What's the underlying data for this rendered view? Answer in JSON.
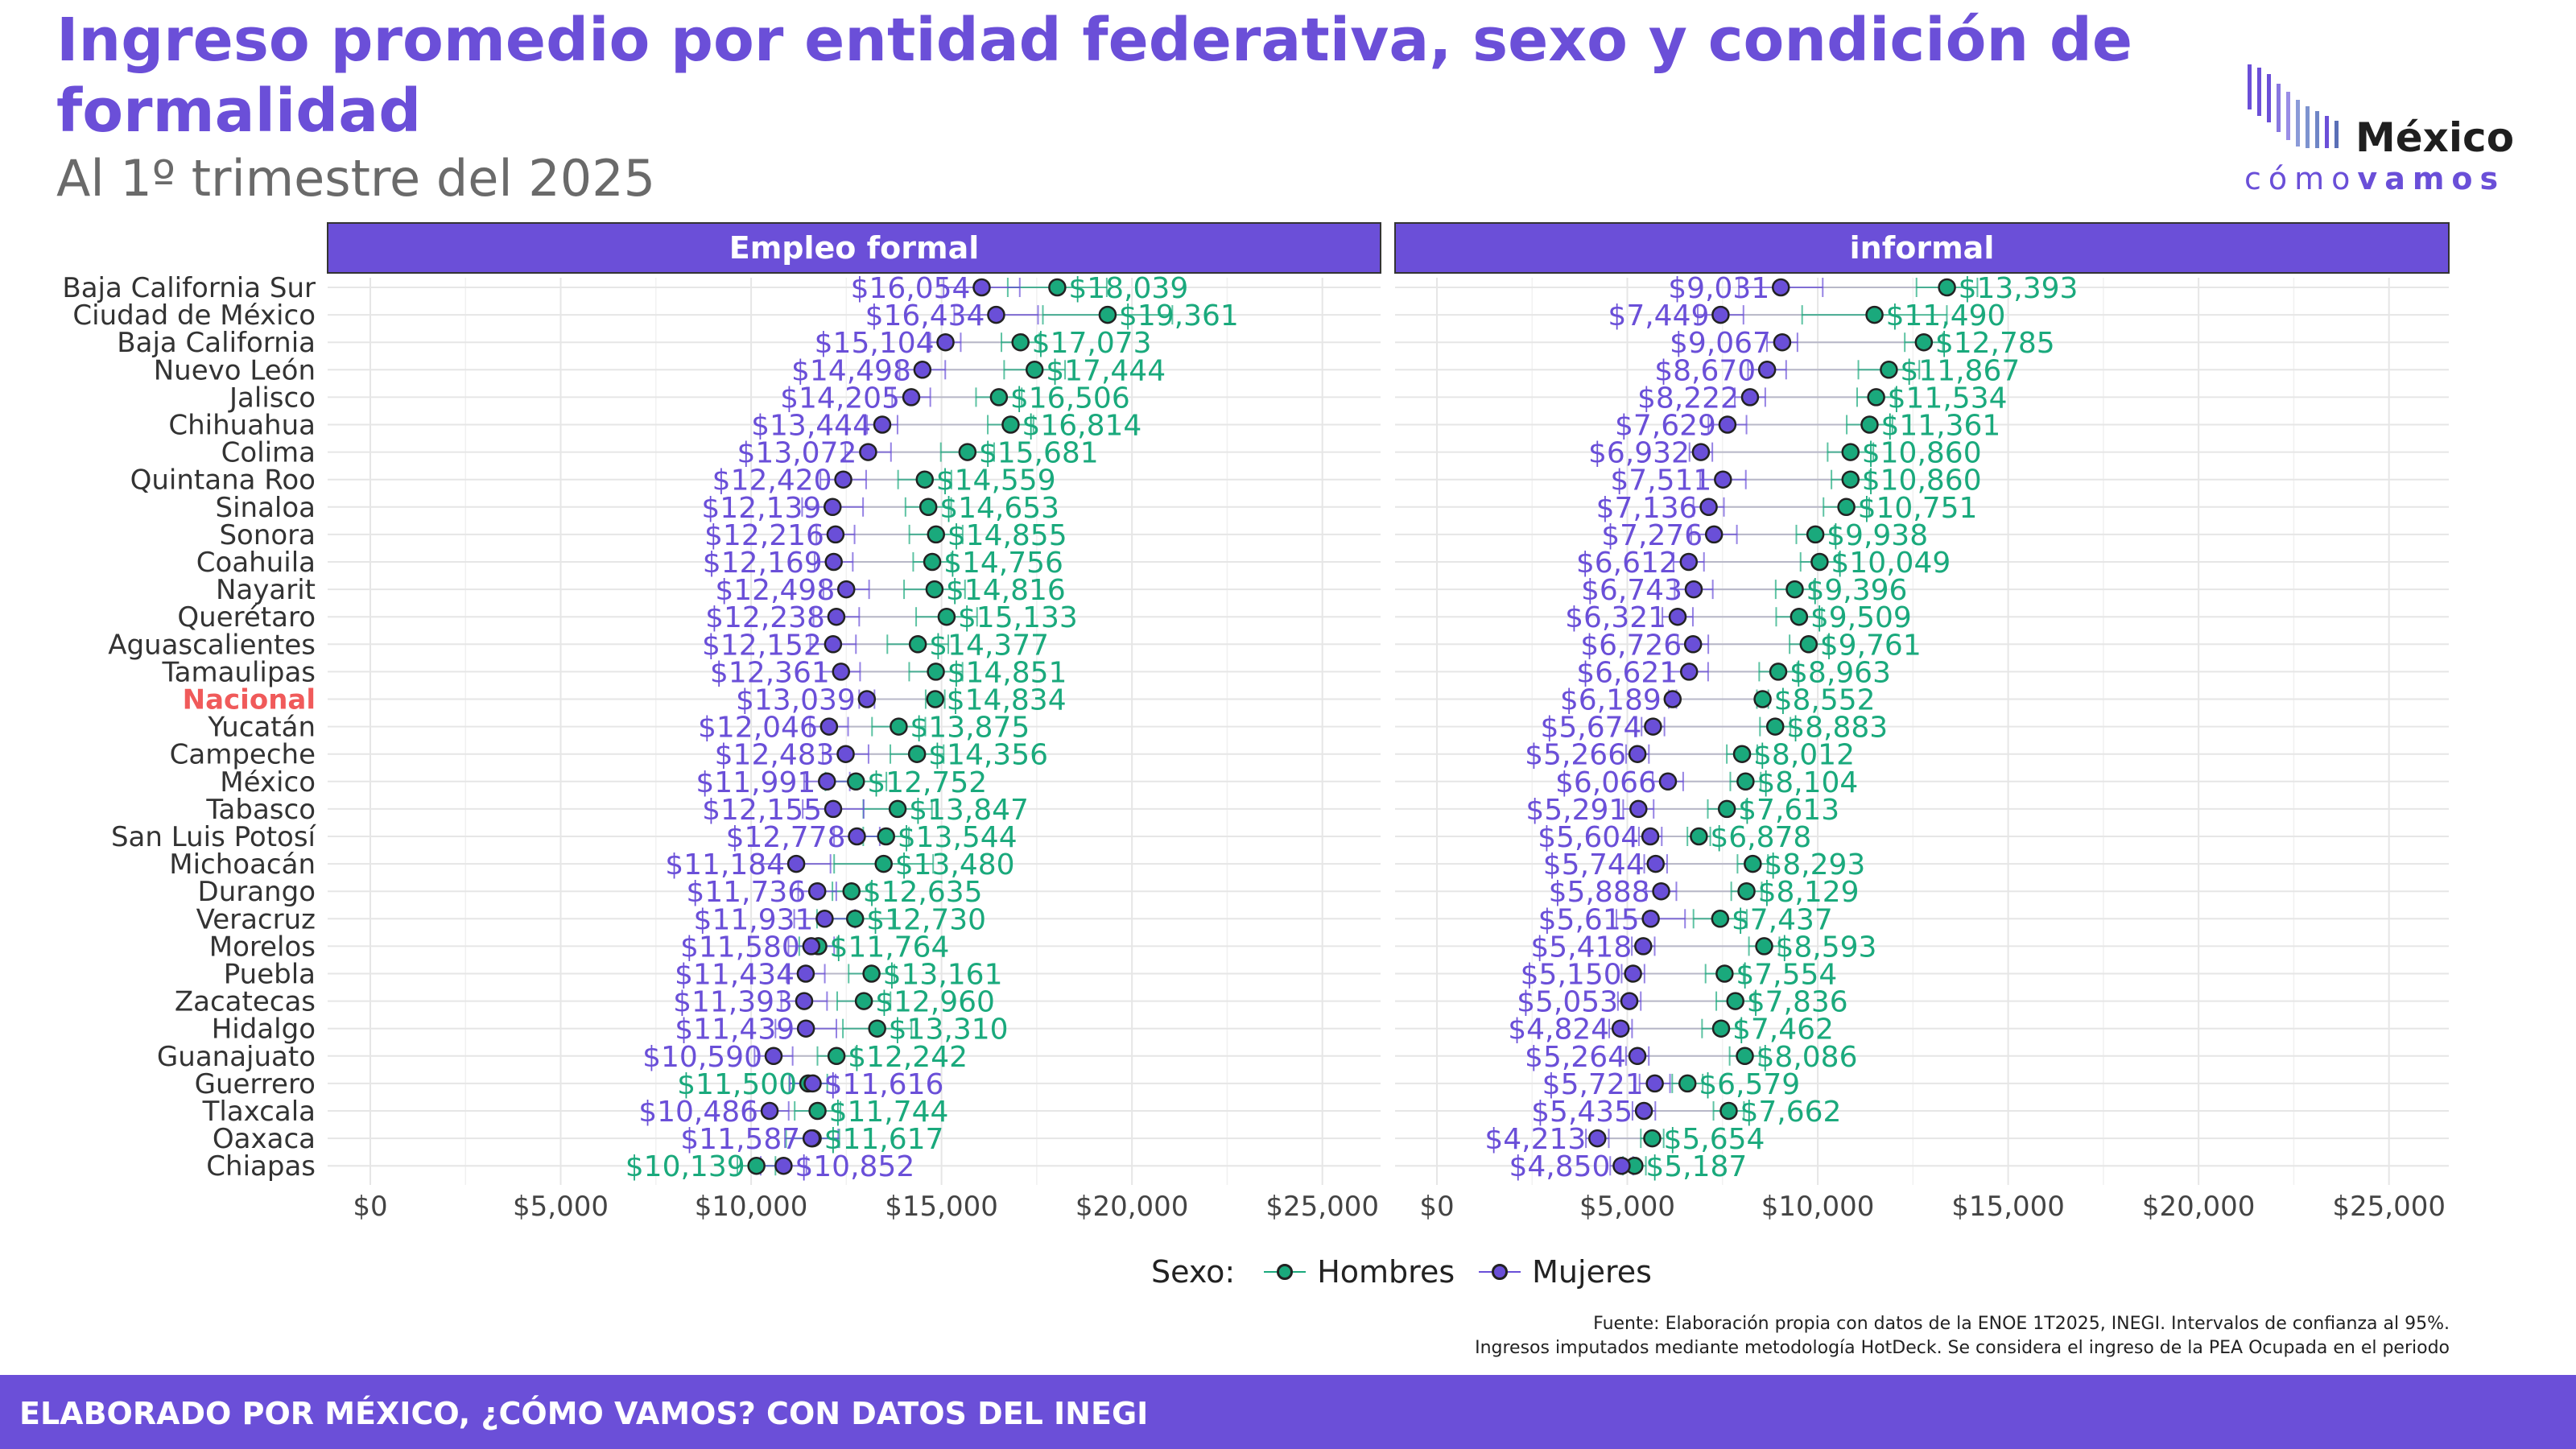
{
  "title": "Ingreso promedio por entidad federativa, sexo y condición de formalidad",
  "subtitle": "Al 1º trimestre del 2025",
  "logo": {
    "name": "México",
    "tagline_a": "cómo",
    "tagline_b": "vamos"
  },
  "legend": {
    "title": "Sexo:",
    "items": [
      "Hombres",
      "Mujeres"
    ]
  },
  "source": {
    "line1": "Fuente: Elaboración propia con datos de la ENOE 1T2025, INEGI. Intervalos de confianza al 95%.",
    "line2": "Ingresos imputados mediante metodología HotDeck. Se considera el ingreso de la PEA Ocupada en el periodo"
  },
  "footer": "ELABORADO POR MÉXICO, ¿CÓMO VAMOS? CON DATOS DEL INEGI",
  "colors": {
    "accent": "#6b4fd8",
    "hombres": "#1aa97c",
    "mujeres": "#6a4fd8",
    "nacional": "#f05a5a",
    "grid": "#e6e6e6"
  },
  "chart_data": {
    "type": "scatter",
    "x_axis": {
      "lim": [
        0,
        26000
      ],
      "ticks": [
        0,
        5000,
        10000,
        15000,
        20000,
        25000
      ],
      "tick_labels": [
        "$0",
        "$5,000",
        "$10,000",
        "$15,000",
        "$20,000",
        "$25,000"
      ]
    },
    "grid": true,
    "legend_position": "bottom",
    "highlight_category": "Nacional",
    "categories": [
      "Baja California Sur",
      "Ciudad de México",
      "Baja California",
      "Nuevo León",
      "Jalisco",
      "Chihuahua",
      "Colima",
      "Quintana Roo",
      "Sinaloa",
      "Sonora",
      "Coahuila",
      "Nayarit",
      "Querétaro",
      "Aguascalientes",
      "Tamaulipas",
      "Nacional",
      "Yucatán",
      "Campeche",
      "México",
      "Tabasco",
      "San Luis Potosí",
      "Michoacán",
      "Durango",
      "Veracruz",
      "Morelos",
      "Puebla",
      "Zacatecas",
      "Hidalgo",
      "Guanajuato",
      "Guerrero",
      "Tlaxcala",
      "Oaxaca",
      "Chiapas"
    ],
    "panels": [
      {
        "name": "Empleo formal",
        "series": [
          {
            "name": "Hombres",
            "values": [
              18039,
              19361,
              17073,
              17444,
              16506,
              16814,
              15681,
              14559,
              14653,
              14855,
              14756,
              14816,
              15133,
              14377,
              14851,
              14834,
              13875,
              14356,
              12752,
              13847,
              13544,
              13480,
              12635,
              12730,
              11764,
              13161,
              12960,
              13310,
              12242,
              11500,
              11744,
              11617,
              10139
            ],
            "labels": [
              "$18,039",
              "$19,361",
              "$17,073",
              "$17,444",
              "$16,506",
              "$16,814",
              "$15,681",
              "$14,559",
              "$14,653",
              "$14,855",
              "$14,756",
              "$14,816",
              "$15,133",
              "$14,377",
              "$14,851",
              "$14,834",
              "$13,875",
              "$14,356",
              "$12,752",
              "$13,847",
              "$13,544",
              "$13,480",
              "$12,635",
              "$12,730",
              "$11,764",
              "$13,161",
              "$12,960",
              "$13,310",
              "$12,242",
              "$11,500",
              "$11,744",
              "$11,617",
              "$10,139"
            ],
            "ci_half": [
              1300,
              1700,
              500,
              800,
              600,
              600,
              700,
              700,
              600,
              700,
              500,
              800,
              800,
              800,
              700,
              250,
              700,
              700,
              800,
              900,
              600,
              1300,
              500,
              1000,
              500,
              600,
              700,
              900,
              500,
              500,
              600,
              700,
              500
            ]
          },
          {
            "name": "Mujeres",
            "values": [
              16054,
              16434,
              15104,
              14498,
              14205,
              13444,
              13072,
              12420,
              12139,
              12216,
              12169,
              12498,
              12238,
              12152,
              12361,
              13039,
              12046,
              12483,
              11991,
              12155,
              12778,
              11184,
              11736,
              11931,
              11580,
              11434,
              11393,
              11439,
              10590,
              11616,
              10486,
              11587,
              10852
            ],
            "labels": [
              "$16,054",
              "$16,434",
              "$15,104",
              "$14,498",
              "$14,205",
              "$13,444",
              "$13,072",
              "$12,420",
              "$12,139",
              "$12,216",
              "$12,169",
              "$12,498",
              "$12,238",
              "$12,152",
              "$12,361",
              "$13,039",
              "$12,046",
              "$12,483",
              "$11,991",
              "$12,155",
              "$12,778",
              "$11,184",
              "$11,736",
              "$11,931",
              "$11,580",
              "$11,434",
              "$11,393",
              "$11,439",
              "$10,590",
              "$11,616",
              "$10,486",
              "$11,587",
              "$10,852"
            ],
            "ci_half": [
              1000,
              1100,
              400,
              600,
              500,
              400,
              600,
              600,
              800,
              500,
              500,
              600,
              600,
              600,
              500,
              200,
              500,
              600,
              600,
              800,
              600,
              900,
              500,
              800,
              600,
              500,
              600,
              800,
              500,
              600,
              500,
              700,
              600
            ]
          }
        ]
      },
      {
        "name": "informal",
        "series": [
          {
            "name": "Hombres",
            "values": [
              13393,
              11490,
              12785,
              11867,
              11534,
              11361,
              10860,
              10860,
              10751,
              9938,
              10049,
              9396,
              9509,
              9761,
              8963,
              8552,
              8883,
              8012,
              8104,
              7613,
              6878,
              8293,
              8129,
              7437,
              8593,
              7554,
              7836,
              7462,
              8086,
              6579,
              7662,
              5654,
              5187
            ],
            "labels": [
              "$13,393",
              "$11,490",
              "$12,785",
              "$11,867",
              "$11,534",
              "$11,361",
              "$10,860",
              "$10,860",
              "$10,751",
              "$9,938",
              "$10,049",
              "$9,396",
              "$9,509",
              "$9,761",
              "$8,963",
              "$8,552",
              "$8,883",
              "$8,012",
              "$8,104",
              "$7,613",
              "$6,878",
              "$8,293",
              "$8,129",
              "$7,437",
              "$8,593",
              "$7,554",
              "$7,836",
              "$7,462",
              "$8,086",
              "$6,579",
              "$7,662",
              "$5,654",
              "$5,187"
            ],
            "ci_half": [
              800,
              1900,
              500,
              800,
              500,
              600,
              600,
              500,
              600,
              500,
              500,
              500,
              600,
              500,
              500,
              150,
              400,
              400,
              400,
              500,
              300,
              400,
              400,
              700,
              400,
              500,
              500,
              500,
              400,
              400,
              400,
              300,
              300
            ]
          },
          {
            "name": "Mujeres",
            "values": [
              9031,
              7449,
              9067,
              8670,
              8222,
              7629,
              6932,
              7511,
              7136,
              7276,
              6612,
              6743,
              6321,
              6726,
              6621,
              6189,
              5674,
              5266,
              6066,
              5291,
              5604,
              5744,
              5888,
              5615,
              5418,
              5150,
              5053,
              4824,
              5264,
              5721,
              5435,
              4213,
              4850
            ],
            "labels": [
              "$9,031",
              "$7,449",
              "$9,067",
              "$8,670",
              "$8,222",
              "$7,629",
              "$6,932",
              "$7,511",
              "$7,136",
              "$7,276",
              "$6,612",
              "$6,743",
              "$6,321",
              "$6,726",
              "$6,621",
              "$6,189",
              "$5,674",
              "$5,266",
              "$6,066",
              "$5,291",
              "$5,604",
              "$5,744",
              "$5,888",
              "$5,615",
              "$5,418",
              "$5,150",
              "$5,053",
              "$4,824",
              "$5,264",
              "$5,721",
              "$5,435",
              "$4,213",
              "$4,850"
            ],
            "ci_half": [
              1100,
              600,
              400,
              500,
              400,
              500,
              300,
              600,
              400,
              600,
              400,
              500,
              400,
              400,
              500,
              100,
              300,
              300,
              400,
              400,
              300,
              300,
              400,
              900,
              300,
              300,
              300,
              300,
              300,
              400,
              300,
              300,
              300
            ]
          }
        ]
      }
    ]
  }
}
